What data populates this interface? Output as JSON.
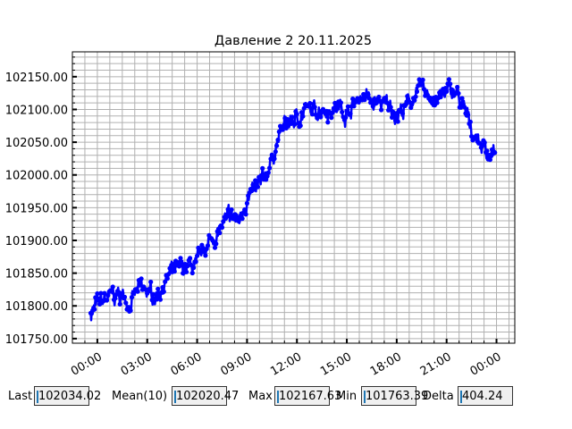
{
  "chart_data": {
    "type": "line",
    "title": "Давление 2 20.11.2025",
    "xlabel": "",
    "ylabel": "",
    "x_ticks": [
      "00:00",
      "03:00",
      "06:00",
      "09:00",
      "12:00",
      "15:00",
      "18:00",
      "21:00",
      "00:00"
    ],
    "y_ticks": [
      "101750.00",
      "101800.00",
      "101850.00",
      "101900.00",
      "101950.00",
      "102000.00",
      "102050.00",
      "102100.00",
      "102150.00"
    ],
    "ylim": [
      101743,
      102188
    ],
    "xlim_hours": [
      -1.5,
      25.1
    ],
    "grid": true,
    "color": "#0000ff",
    "marker": "circle",
    "series": [
      {
        "x_hours": [
          -0.4,
          0,
          0.5,
          1,
          1.5,
          2,
          2.5,
          3,
          3.5,
          4,
          4.5,
          5,
          5.5,
          6,
          6.5,
          7,
          7.5,
          8,
          8.5,
          9,
          9.5,
          10,
          10.5,
          11,
          11.5,
          12,
          12.5,
          13,
          13.5,
          14,
          14.5,
          15,
          15.5,
          16,
          16.5,
          17,
          17.5,
          18,
          18.5,
          19,
          19.5,
          20,
          20.5,
          21,
          21.5,
          22,
          22.5,
          23,
          23.5,
          23.9
        ],
        "values": [
          101790,
          101800,
          101810,
          101815,
          101815,
          101805,
          101825,
          101820,
          101815,
          101835,
          101850,
          101855,
          101860,
          101860,
          101890,
          101905,
          101920,
          101935,
          101930,
          101965,
          101975,
          101990,
          102025,
          102065,
          102080,
          102085,
          102100,
          102095,
          102105,
          102100,
          102105,
          102095,
          102110,
          102125,
          102110,
          102110,
          102105,
          102095,
          102100,
          102120,
          102130,
          102120,
          102115,
          102125,
          102130,
          102100,
          102070,
          102050,
          102035,
          102034.02
        ]
      }
    ]
  },
  "stats": {
    "last_label": "Last",
    "last_value": "102034.02",
    "mean_label": "Mean(10)",
    "mean_value": "102020.47",
    "max_label": "Max",
    "max_value": "102167.63",
    "min_label": "Min",
    "min_value": "101763.39",
    "delta_label": "Delta",
    "delta_value": "404.24"
  }
}
